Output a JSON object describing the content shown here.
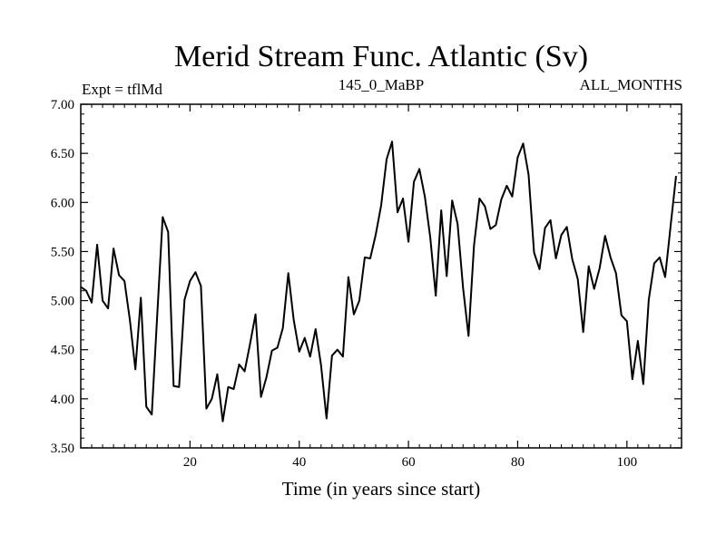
{
  "chart_data": {
    "type": "line",
    "title": "Merid Stream Func. Atlantic (Sv)",
    "subtitle_left": "Expt = tflMd",
    "subtitle_center": "145_0_MaBP",
    "subtitle_right": "ALL_MONTHS",
    "xlabel": "Time (in years since start)",
    "ylabel": "",
    "xlim": [
      0,
      110
    ],
    "ylim": [
      3.5,
      7.0
    ],
    "x_ticks": [
      20,
      40,
      60,
      80,
      100
    ],
    "x_tick_labels": [
      "20",
      "40",
      "60",
      "80",
      "100"
    ],
    "y_ticks": [
      3.5,
      4.0,
      4.5,
      5.0,
      5.5,
      6.0,
      6.5,
      7.0
    ],
    "y_tick_labels": [
      "3.50",
      "4.00",
      "4.50",
      "5.00",
      "5.50",
      "6.00",
      "6.50",
      "7.00"
    ],
    "grid": false,
    "line_color": "#000000",
    "series": [
      {
        "name": "Merid Stream Func. Atlantic",
        "x_start": 0,
        "x_step": 1,
        "values": [
          5.14,
          5.1,
          4.98,
          5.57,
          5.0,
          4.92,
          5.53,
          5.26,
          5.2,
          4.8,
          4.3,
          5.03,
          3.92,
          3.84,
          4.85,
          5.85,
          5.7,
          4.13,
          4.12,
          5.01,
          5.2,
          5.29,
          5.15,
          3.9,
          4.0,
          4.25,
          3.77,
          4.12,
          4.1,
          4.35,
          4.28,
          4.56,
          4.86,
          4.02,
          4.22,
          4.49,
          4.52,
          4.72,
          5.28,
          4.8,
          4.48,
          4.62,
          4.43,
          4.71,
          4.34,
          3.8,
          4.44,
          4.5,
          4.43,
          5.24,
          4.86,
          5.0,
          5.44,
          5.43,
          5.67,
          5.97,
          6.44,
          6.62,
          5.9,
          6.04,
          5.6,
          6.21,
          6.34,
          6.06,
          5.64,
          5.05,
          5.92,
          5.25,
          6.02,
          5.78,
          5.13,
          4.64,
          5.56,
          6.04,
          5.96,
          5.73,
          5.77,
          6.03,
          6.17,
          6.06,
          6.46,
          6.6,
          6.28,
          5.49,
          5.32,
          5.74,
          5.82,
          5.43,
          5.67,
          5.75,
          5.42,
          5.22,
          4.68,
          5.35,
          5.12,
          5.33,
          5.66,
          5.44,
          5.28,
          4.85,
          4.79,
          4.2,
          4.59,
          4.15,
          5.01,
          5.38,
          5.44,
          5.24,
          5.76,
          6.27
        ]
      }
    ]
  }
}
